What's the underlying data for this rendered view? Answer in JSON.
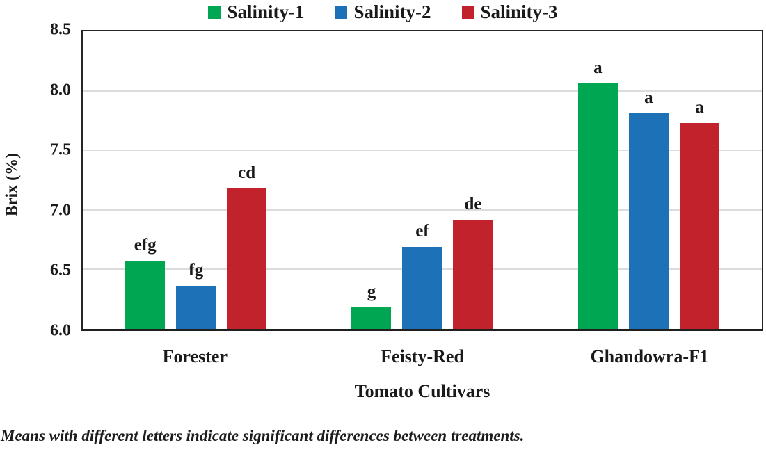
{
  "chart_data": {
    "type": "bar",
    "ylabel": "Brix (%)",
    "xlabel": "Tomato Cultivars",
    "ylim": [
      6.0,
      8.5
    ],
    "yticks": [
      6.0,
      6.5,
      7.0,
      7.5,
      8.0,
      8.5
    ],
    "ytick_labels": [
      "6.0",
      "6.5",
      "7.0",
      "7.5",
      "8.0",
      "8.5"
    ],
    "grid": true,
    "legend_position": "top",
    "categories": [
      "Forester",
      "Feisty-Red",
      "Ghandowra-F1"
    ],
    "series": [
      {
        "name": "Salinity-1",
        "color": "#00a651",
        "values": [
          6.57,
          6.18,
          8.06
        ],
        "letters": [
          "efg",
          "g",
          "a"
        ]
      },
      {
        "name": "Salinity-2",
        "color": "#1c71b7",
        "values": [
          6.36,
          6.69,
          7.81
        ],
        "letters": [
          "fg",
          "ef",
          "a"
        ]
      },
      {
        "name": "Salinity-3",
        "color": "#c2222b",
        "values": [
          7.18,
          6.92,
          7.73
        ],
        "letters": [
          "cd",
          "de",
          "a"
        ]
      }
    ]
  },
  "footnote": "Means with different letters indicate significant differences between treatments.",
  "colors": {
    "grid": "#dcdcdc",
    "axis": "#262626",
    "text": "#1a1a1a"
  }
}
